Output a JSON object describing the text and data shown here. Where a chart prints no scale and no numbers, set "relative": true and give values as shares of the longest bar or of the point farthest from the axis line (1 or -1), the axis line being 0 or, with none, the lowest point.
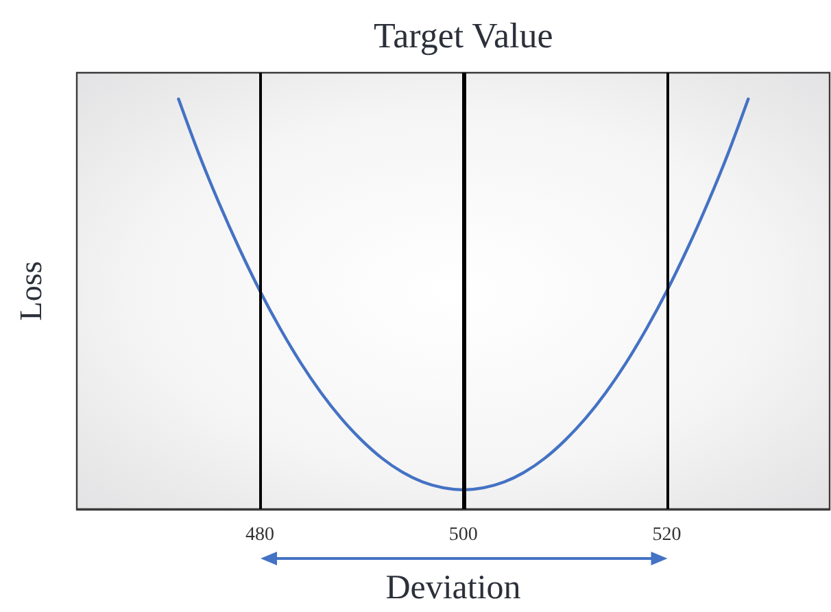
{
  "chart_data": {
    "type": "line",
    "xlabel": "Deviation",
    "ylabel": "Loss",
    "x": [
      472,
      474,
      476,
      478,
      480,
      482,
      484,
      486,
      488,
      490,
      492,
      494,
      496,
      498,
      500,
      502,
      504,
      506,
      508,
      510,
      512,
      514,
      516,
      518,
      520,
      522,
      524,
      526,
      528
    ],
    "values": [
      1.0,
      0.866,
      0.745,
      0.634,
      0.532,
      0.44,
      0.357,
      0.284,
      0.221,
      0.168,
      0.124,
      0.09,
      0.066,
      0.052,
      0.047,
      0.052,
      0.066,
      0.09,
      0.124,
      0.168,
      0.221,
      0.284,
      0.357,
      0.44,
      0.532,
      0.634,
      0.745,
      0.866,
      1.0
    ],
    "color": "#4472c4",
    "relative": true,
    "xlim": [
      462,
      536
    ],
    "xticks": [
      480,
      500,
      520
    ],
    "ref_lines": [
      {
        "axis": "x",
        "value": 480,
        "color": "#000000"
      },
      {
        "axis": "x",
        "value": 500,
        "label": "Target Value",
        "color": "#000000"
      },
      {
        "axis": "x",
        "value": 520,
        "color": "#000000"
      }
    ],
    "marker": "none",
    "line_style": "solid"
  }
}
